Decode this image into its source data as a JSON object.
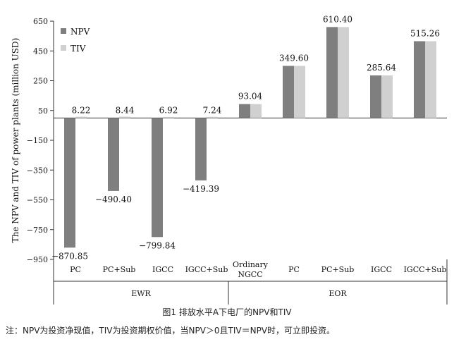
{
  "figure": {
    "caption": "图1 排放水平A下电厂的NPV和TIV",
    "note": "注：NPV为投资净现值，TIV为投资期权价值，当NPV＞0且TIV＝NPV时，可立即投资。"
  },
  "chart_data": {
    "type": "bar",
    "ylabel": "The NPV and TIV of power plants (million USD)",
    "ylim": [
      -950,
      650
    ],
    "yticks": [
      650,
      450,
      250,
      50,
      -150,
      -350,
      -550,
      -750,
      -950
    ],
    "grid": false,
    "legend": "top-left",
    "categories": [
      "PC",
      "PC+Sub",
      "IGCC",
      "IGCC+Sub",
      "Ordinary NGCC",
      "PC",
      "PC+Sub",
      "IGCC",
      "IGCC+Sub"
    ],
    "category_lines": [
      [
        "PC"
      ],
      [
        "PC+Sub"
      ],
      [
        "IGCC"
      ],
      [
        "IGCC+Sub"
      ],
      [
        "Ordinary",
        "NGCC"
      ],
      [
        "PC"
      ],
      [
        "PC+Sub"
      ],
      [
        "IGCC"
      ],
      [
        "IGCC+Sub"
      ]
    ],
    "groups": [
      {
        "label": "EWR",
        "count": 4
      },
      {
        "label": "EOR",
        "count": 5
      }
    ],
    "series": [
      {
        "name": "NPV",
        "color": "#7f7f7f",
        "values": [
          -870.85,
          -490.4,
          -799.84,
          -419.39,
          93.04,
          349.6,
          610.4,
          285.64,
          515.26
        ]
      },
      {
        "name": "TIV",
        "color": "#d0d0d0",
        "values": [
          8.22,
          8.44,
          6.92,
          7.24,
          93.04,
          349.6,
          610.4,
          285.64,
          515.26
        ]
      }
    ],
    "data_labels": [
      "−870.85",
      "−490.40",
      "−799.84",
      "−419.39",
      "93.04",
      "349.60",
      "610.40",
      "285.64",
      "515.26"
    ],
    "tiv_labels": [
      "8.22",
      "8.44",
      "6.92",
      "7.24",
      "",
      "",
      "",
      "",
      ""
    ]
  }
}
